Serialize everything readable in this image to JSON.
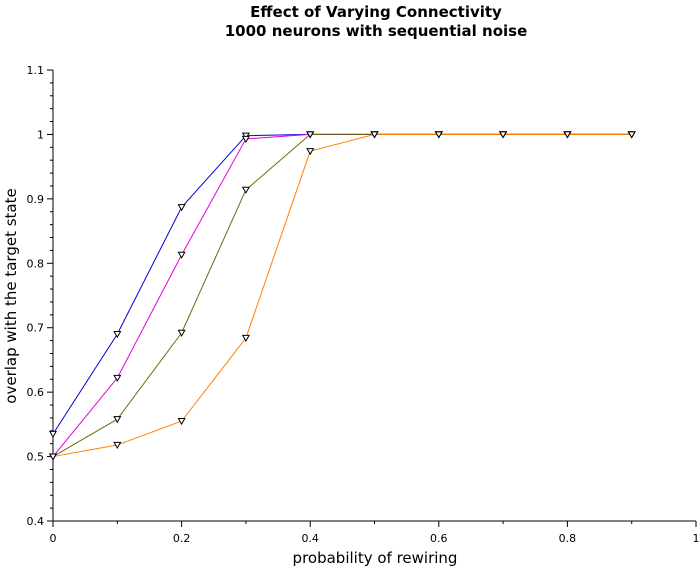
{
  "chart_data": {
    "type": "line",
    "title": [
      "Effect of Varying Connectivity",
      "1000 neurons with sequential noise"
    ],
    "xlabel": "probability of rewiring",
    "ylabel": "overlap with the target state",
    "xlim": [
      0,
      1
    ],
    "ylim": [
      0.4,
      1.1
    ],
    "xticks": [
      0,
      0.2,
      0.4,
      0.6,
      0.8,
      1
    ],
    "xtick_labels": [
      "0",
      "0.2",
      "0.4",
      "0.6",
      "0.8",
      "1"
    ],
    "yticks": [
      0.4,
      0.5,
      0.6,
      0.7,
      0.8,
      0.9,
      1.0,
      1.1
    ],
    "ytick_labels": [
      "0.4",
      "0.5",
      "0.6",
      "0.7",
      "0.8",
      "0.9",
      "1",
      "1.1"
    ],
    "grid": false,
    "legend": "none",
    "marker": "triangle-down",
    "x": [
      0,
      0.1,
      0.2,
      0.3,
      0.4,
      0.5,
      0.6,
      0.7,
      0.8,
      0.9
    ],
    "series": [
      {
        "color": "#0000dd",
        "values": [
          0.535,
          0.69,
          0.887,
          0.998,
          1.0,
          1.0,
          1.0,
          1.0,
          1.0,
          1.0
        ]
      },
      {
        "color": "#e000e0",
        "values": [
          0.5,
          0.622,
          0.813,
          0.993,
          1.0,
          1.0,
          1.0,
          1.0,
          1.0,
          1.0
        ]
      },
      {
        "color": "#6b6b10",
        "values": [
          0.5,
          0.558,
          0.692,
          0.914,
          1.0,
          1.0,
          1.0,
          1.0,
          1.0,
          1.0
        ]
      },
      {
        "color": "#ff8000",
        "values": [
          0.5,
          0.518,
          0.555,
          0.684,
          0.974,
          1.0,
          1.0,
          1.0,
          1.0,
          1.0
        ]
      }
    ]
  }
}
